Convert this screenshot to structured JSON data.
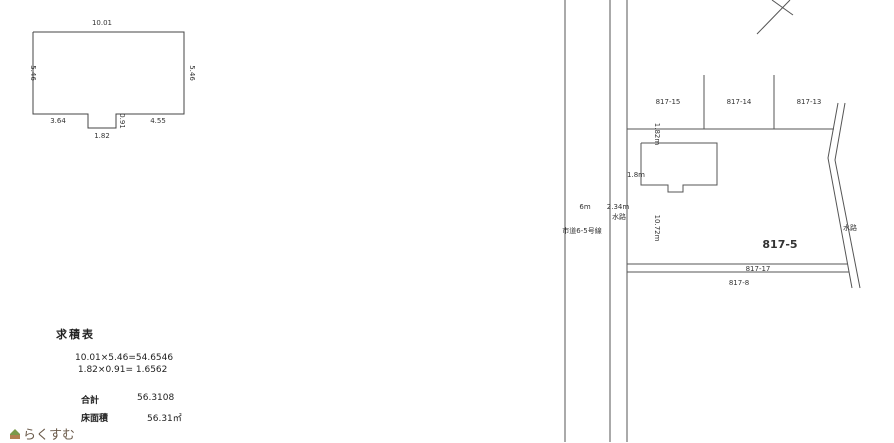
{
  "floor_plan": {
    "top_width": "10.01",
    "left_height": "5.46",
    "right_height": "5.46",
    "bottom_left": "3.64",
    "notch_depth": "0.91",
    "bottom_right": "4.55",
    "notch_width": "1.82"
  },
  "area_table": {
    "title": "求積表",
    "line1": "10.01×5.46=54.6546",
    "line2": " 1.82×0.91= 1.6562",
    "total_label": "合計",
    "total_value": "56.3108",
    "floor_area_label": "床面積",
    "floor_area_value": "56.31㎡"
  },
  "site_map": {
    "lots": [
      "817-15",
      "817-14",
      "817-13"
    ],
    "main_lot": "817-5",
    "lot_17": "817-17",
    "lot_8": "817-8",
    "road_width": "6m",
    "road_name": "市道6-5号線",
    "channel_width": "2.34m",
    "channel_label": "水路",
    "right_channel_label": "水路",
    "depth": "10.72m",
    "setback_side": "1.8m",
    "setback_top": "1.82m"
  },
  "logo": {
    "text": "らくすむ"
  }
}
